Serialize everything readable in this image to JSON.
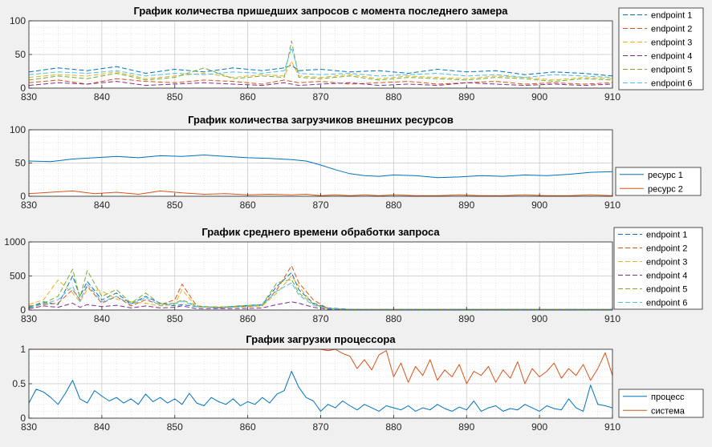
{
  "chart_data": [
    {
      "type": "line",
      "title": "График количества пришедших запросов с момента последнего замера",
      "xlabel": "",
      "ylabel": "",
      "xlim": [
        830,
        910
      ],
      "ylim": [
        0,
        100
      ],
      "xticks": [
        830,
        840,
        850,
        860,
        870,
        880,
        890,
        900,
        910
      ],
      "yticks": [
        0,
        50,
        100
      ],
      "grid": true,
      "legend_position": "outside-right-top",
      "line_style": "dashed",
      "x": [
        830,
        834,
        838,
        842,
        846,
        850,
        854,
        858,
        862,
        865,
        866,
        867,
        870,
        874,
        878,
        882,
        886,
        890,
        894,
        898,
        902,
        906,
        910
      ],
      "series": [
        {
          "name": "endpoint 1",
          "color": "#0072BD",
          "values": [
            24,
            30,
            26,
            32,
            22,
            28,
            24,
            30,
            26,
            30,
            34,
            26,
            28,
            24,
            26,
            22,
            28,
            24,
            26,
            20,
            24,
            22,
            18
          ]
        },
        {
          "name": "endpoint 2",
          "color": "#D95319",
          "values": [
            8,
            12,
            6,
            14,
            10,
            8,
            12,
            10,
            6,
            12,
            10,
            8,
            10,
            6,
            8,
            10,
            6,
            8,
            10,
            6,
            8,
            6,
            8
          ]
        },
        {
          "name": "endpoint 3",
          "color": "#EDB120",
          "values": [
            16,
            20,
            18,
            24,
            14,
            18,
            22,
            16,
            20,
            18,
            40,
            18,
            16,
            20,
            14,
            18,
            16,
            14,
            18,
            16,
            12,
            16,
            14
          ]
        },
        {
          "name": "endpoint 4",
          "color": "#7E2F8E",
          "values": [
            4,
            8,
            6,
            10,
            4,
            6,
            8,
            6,
            4,
            8,
            6,
            4,
            6,
            8,
            4,
            6,
            4,
            8,
            6,
            4,
            6,
            4,
            6
          ]
        },
        {
          "name": "endpoint 5",
          "color": "#77AC30",
          "values": [
            12,
            18,
            14,
            22,
            12,
            16,
            30,
            14,
            18,
            16,
            70,
            16,
            14,
            18,
            12,
            16,
            14,
            12,
            16,
            14,
            10,
            14,
            12
          ]
        },
        {
          "name": "endpoint 6",
          "color": "#4DBEEE",
          "values": [
            20,
            24,
            22,
            26,
            18,
            22,
            20,
            24,
            22,
            26,
            60,
            22,
            20,
            22,
            18,
            20,
            22,
            18,
            20,
            16,
            20,
            18,
            16
          ]
        }
      ]
    },
    {
      "type": "line",
      "title": "График количества загрузчиков внешних ресурсов",
      "xlabel": "",
      "ylabel": "",
      "xlim": [
        830,
        910
      ],
      "ylim": [
        0,
        100
      ],
      "xticks": [
        830,
        840,
        850,
        860,
        870,
        880,
        890,
        900,
        910
      ],
      "yticks": [
        0,
        50,
        100
      ],
      "grid": true,
      "legend_position": "outside-right-bottom",
      "line_style": "solid",
      "x": [
        830,
        833,
        836,
        839,
        842,
        845,
        848,
        851,
        854,
        857,
        860,
        863,
        866,
        868,
        870,
        872,
        874,
        876,
        878,
        880,
        883,
        886,
        889,
        892,
        895,
        898,
        901,
        904,
        907,
        910
      ],
      "series": [
        {
          "name": "ресурс 1",
          "color": "#0072BD",
          "values": [
            53,
            52,
            56,
            58,
            60,
            58,
            61,
            60,
            62,
            60,
            58,
            57,
            55,
            53,
            47,
            40,
            34,
            31,
            30,
            32,
            31,
            28,
            29,
            31,
            30,
            32,
            31,
            33,
            36,
            37
          ]
        },
        {
          "name": "ресурс 2",
          "color": "#D95319",
          "values": [
            4,
            6,
            8,
            4,
            6,
            3,
            8,
            5,
            3,
            4,
            2,
            3,
            2,
            3,
            1,
            2,
            1,
            2,
            1,
            2,
            1,
            1,
            2,
            1,
            1,
            2,
            1,
            1,
            2,
            1
          ]
        }
      ]
    },
    {
      "type": "line",
      "title": "График среднего времени обработки запроса",
      "xlabel": "",
      "ylabel": "",
      "xlim": [
        830,
        910
      ],
      "ylim": [
        0,
        1000
      ],
      "xticks": [
        830,
        840,
        850,
        860,
        870,
        880,
        890,
        900,
        910
      ],
      "yticks": [
        0,
        500,
        1000
      ],
      "grid": true,
      "legend_position": "outside-right-top",
      "line_style": "dashed",
      "x": [
        830,
        832,
        834,
        836,
        837,
        838,
        840,
        842,
        844,
        846,
        848,
        850,
        851,
        853,
        856,
        859,
        862,
        864,
        866,
        867,
        869,
        871,
        874,
        878,
        882,
        886,
        890,
        894,
        898,
        902,
        906,
        910
      ],
      "series": [
        {
          "name": "endpoint 1",
          "color": "#0072BD",
          "values": [
            40,
            120,
            80,
            500,
            200,
            420,
            150,
            250,
            90,
            200,
            100,
            60,
            80,
            50,
            40,
            60,
            80,
            350,
            550,
            300,
            100,
            30,
            10,
            10,
            10,
            10,
            10,
            10,
            10,
            10,
            10,
            10
          ]
        },
        {
          "name": "endpoint 2",
          "color": "#D95319",
          "values": [
            60,
            80,
            100,
            300,
            150,
            350,
            100,
            200,
            60,
            150,
            80,
            150,
            380,
            60,
            30,
            50,
            60,
            300,
            650,
            400,
            150,
            20,
            8,
            8,
            8,
            8,
            8,
            8,
            8,
            8,
            8,
            8
          ]
        },
        {
          "name": "endpoint 3",
          "color": "#EDB120",
          "values": [
            80,
            150,
            440,
            250,
            120,
            300,
            280,
            160,
            120,
            100,
            60,
            80,
            300,
            40,
            50,
            40,
            60,
            250,
            500,
            350,
            80,
            20,
            8,
            8,
            8,
            8,
            8,
            8,
            8,
            8,
            8,
            8
          ]
        },
        {
          "name": "endpoint 4",
          "color": "#7E2F8E",
          "values": [
            20,
            60,
            40,
            100,
            40,
            80,
            50,
            70,
            30,
            60,
            30,
            40,
            60,
            20,
            20,
            20,
            30,
            80,
            120,
            100,
            40,
            10,
            5,
            5,
            5,
            5,
            5,
            5,
            5,
            5,
            5,
            5
          ]
        },
        {
          "name": "endpoint 5",
          "color": "#77AC30",
          "values": [
            50,
            100,
            200,
            600,
            180,
            580,
            200,
            300,
            100,
            250,
            90,
            100,
            150,
            60,
            40,
            60,
            80,
            400,
            450,
            250,
            90,
            25,
            8,
            8,
            8,
            8,
            8,
            8,
            8,
            8,
            8,
            8
          ]
        },
        {
          "name": "endpoint 6",
          "color": "#4DBEEE",
          "values": [
            30,
            90,
            150,
            350,
            120,
            380,
            120,
            200,
            80,
            180,
            70,
            90,
            130,
            50,
            30,
            50,
            70,
            280,
            400,
            220,
            70,
            20,
            6,
            6,
            6,
            6,
            6,
            6,
            6,
            6,
            6,
            6
          ]
        }
      ]
    },
    {
      "type": "line",
      "title": "График загрузки процессора",
      "xlabel": "",
      "ylabel": "",
      "xlim": [
        830,
        910
      ],
      "ylim": [
        0,
        1
      ],
      "xticks": [
        830,
        840,
        850,
        860,
        870,
        880,
        890,
        900,
        910
      ],
      "yticks": [
        0,
        0.5,
        1
      ],
      "ytick_labels": [
        "0",
        "0.5",
        "1"
      ],
      "grid": true,
      "legend_position": "outside-right-bottom",
      "line_style": "solid",
      "x": [
        830,
        831,
        832,
        833,
        834,
        835,
        836,
        837,
        838,
        839,
        840,
        841,
        842,
        843,
        844,
        845,
        846,
        847,
        848,
        849,
        850,
        851,
        852,
        853,
        854,
        855,
        856,
        857,
        858,
        859,
        860,
        861,
        862,
        863,
        864,
        865,
        866,
        867,
        868,
        869,
        870,
        871,
        872,
        873,
        874,
        875,
        876,
        877,
        878,
        879,
        880,
        881,
        882,
        883,
        884,
        885,
        886,
        887,
        888,
        889,
        890,
        891,
        892,
        893,
        894,
        895,
        896,
        897,
        898,
        899,
        900,
        901,
        902,
        903,
        904,
        905,
        906,
        907,
        908,
        909,
        910
      ],
      "series": [
        {
          "name": "процесс",
          "color": "#0072BD",
          "values": [
            0.22,
            0.42,
            0.38,
            0.3,
            0.2,
            0.36,
            0.55,
            0.28,
            0.22,
            0.4,
            0.32,
            0.25,
            0.3,
            0.22,
            0.28,
            0.2,
            0.35,
            0.24,
            0.3,
            0.22,
            0.28,
            0.2,
            0.36,
            0.22,
            0.18,
            0.3,
            0.24,
            0.2,
            0.28,
            0.18,
            0.24,
            0.2,
            0.3,
            0.22,
            0.35,
            0.4,
            0.68,
            0.45,
            0.3,
            0.25,
            0.1,
            0.2,
            0.15,
            0.25,
            0.18,
            0.12,
            0.2,
            0.15,
            0.1,
            0.18,
            0.15,
            0.12,
            0.18,
            0.1,
            0.15,
            0.12,
            0.2,
            0.14,
            0.1,
            0.16,
            0.12,
            0.25,
            0.1,
            0.15,
            0.18,
            0.1,
            0.14,
            0.12,
            0.2,
            0.15,
            0.1,
            0.18,
            0.14,
            0.12,
            0.28,
            0.15,
            0.1,
            0.48,
            0.2,
            0.18,
            0.15
          ]
        },
        {
          "name": "система",
          "color": "#D95319",
          "values": [
            1,
            1,
            1,
            1,
            1,
            1,
            1,
            1,
            1,
            1,
            1,
            1,
            1,
            1,
            1,
            1,
            1,
            1,
            1,
            1,
            1,
            1,
            1,
            1,
            1,
            1,
            1,
            1,
            1,
            1,
            1,
            1,
            1,
            1,
            1,
            1,
            1,
            1,
            1,
            1,
            1,
            0.98,
            1,
            0.94,
            0.9,
            0.72,
            0.85,
            0.7,
            0.92,
            0.98,
            0.6,
            0.8,
            0.52,
            0.75,
            0.62,
            0.85,
            0.55,
            0.7,
            0.6,
            0.78,
            0.5,
            0.68,
            0.62,
            0.75,
            0.52,
            0.7,
            0.58,
            0.82,
            0.5,
            0.72,
            0.6,
            0.68,
            0.8,
            0.58,
            0.72,
            0.62,
            0.78,
            0.55,
            0.72,
            0.95,
            0.62
          ]
        }
      ]
    }
  ]
}
